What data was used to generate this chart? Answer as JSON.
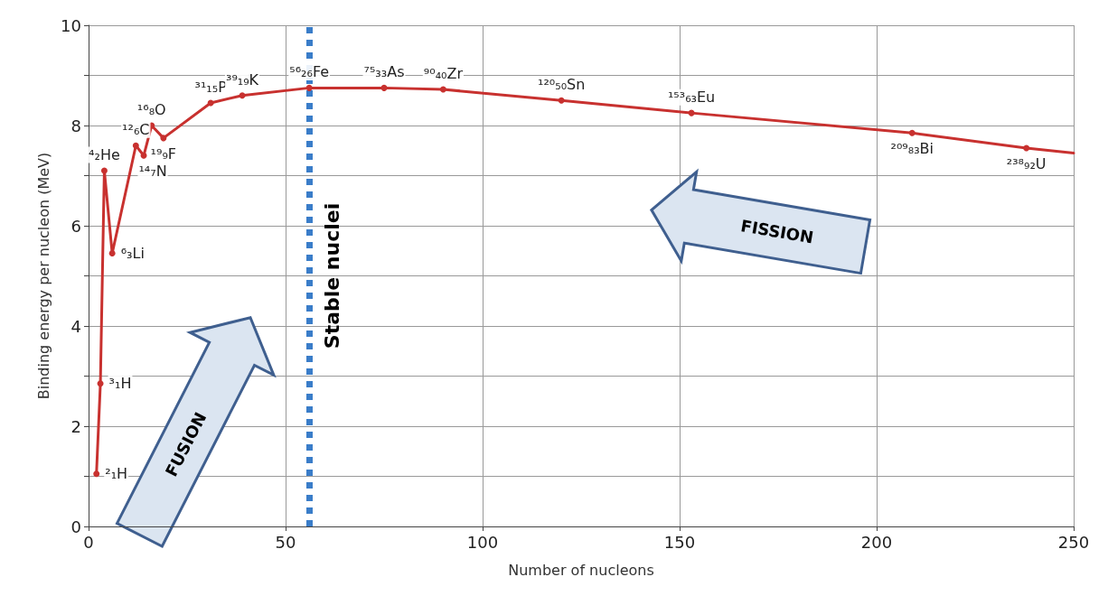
{
  "chart_data": {
    "type": "line",
    "xlabel": "Number of nucleons",
    "ylabel": "Binding energy per nucleon (MeV)",
    "xlim": [
      0,
      250
    ],
    "xticks": [
      0,
      50,
      100,
      150,
      200,
      250
    ],
    "ylim": [
      0,
      10
    ],
    "yticks": [
      0,
      {
        "value": 1,
        "label": null
      },
      2,
      {
        "value": 3,
        "label": null
      },
      4,
      {
        "value": 5,
        "label": null
      },
      6,
      {
        "value": 7,
        "label": null
      },
      8,
      {
        "value": 9,
        "label": null
      },
      10
    ],
    "grid": true,
    "marker": "circle",
    "line_style": "solid",
    "series": [
      {
        "color": "#c8312f",
        "x": [
          2,
          3,
          4,
          6,
          12,
          14,
          16,
          19,
          31,
          39,
          56,
          75,
          90,
          120,
          153,
          209,
          238,
          250
        ],
        "values": [
          1.05,
          2.85,
          7.1,
          5.45,
          7.6,
          7.4,
          8.0,
          7.75,
          8.45,
          8.6,
          8.75,
          8.75,
          8.72,
          8.5,
          8.25,
          7.85,
          7.55,
          7.45
        ],
        "value_labels": [
          "²₁H",
          "³₁H",
          "⁴₂He",
          "⁶₃Li",
          "¹²₆C",
          "¹⁴₇N",
          "¹⁶₈O",
          "¹⁹₉F",
          "³¹₁₅P",
          "³⁹₁₉K",
          "⁵⁶₂₆Fe",
          "⁷⁵₃₃As",
          "⁹⁰₄₀Zr",
          "¹²⁰₅₀Sn",
          "¹⁵³₆₃Eu",
          "²⁰⁹₈₃Bi",
          "²³⁸₉₂U",
          null
        ]
      }
    ],
    "ref_lines": [
      {
        "axis": "x",
        "value": 56,
        "label": "Stable nuclei",
        "color": "#3a7dc9",
        "line_style": "dotted"
      }
    ],
    "annotations": [
      "FUSION",
      "FISSION"
    ]
  }
}
